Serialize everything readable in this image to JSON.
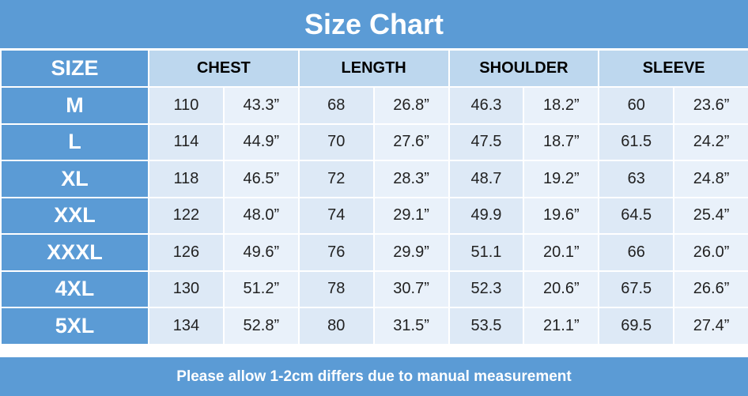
{
  "header": {
    "title": "Size Chart"
  },
  "table": {
    "headers": [
      "SIZE",
      "CHEST",
      "LENGTH",
      "SHOULDER",
      "SLEEVE"
    ],
    "rows": [
      [
        "M",
        "110",
        "43.3”",
        "68",
        "26.8”",
        "46.3",
        "18.2”",
        "60",
        "23.6”"
      ],
      [
        "L",
        "114",
        "44.9”",
        "70",
        "27.6”",
        "47.5",
        "18.7”",
        "61.5",
        "24.2”"
      ],
      [
        "XL",
        "118",
        "46.5”",
        "72",
        "28.3”",
        "48.7",
        "19.2”",
        "63",
        "24.8”"
      ],
      [
        "XXL",
        "122",
        "48.0”",
        "74",
        "29.1”",
        "49.9",
        "19.6”",
        "64.5",
        "25.4”"
      ],
      [
        "XXXL",
        "126",
        "49.6”",
        "76",
        "29.9”",
        "51.1",
        "20.1”",
        "66",
        "26.0”"
      ],
      [
        "4XL",
        "130",
        "51.2”",
        "78",
        "30.7”",
        "52.3",
        "20.6”",
        "67.5",
        "26.6”"
      ],
      [
        "5XL",
        "134",
        "52.8”",
        "80",
        "31.5”",
        "53.5",
        "21.1”",
        "69.5",
        "27.4”"
      ]
    ]
  },
  "footer": {
    "note": "Please allow 1-2cm differs due to manual measurement"
  }
}
